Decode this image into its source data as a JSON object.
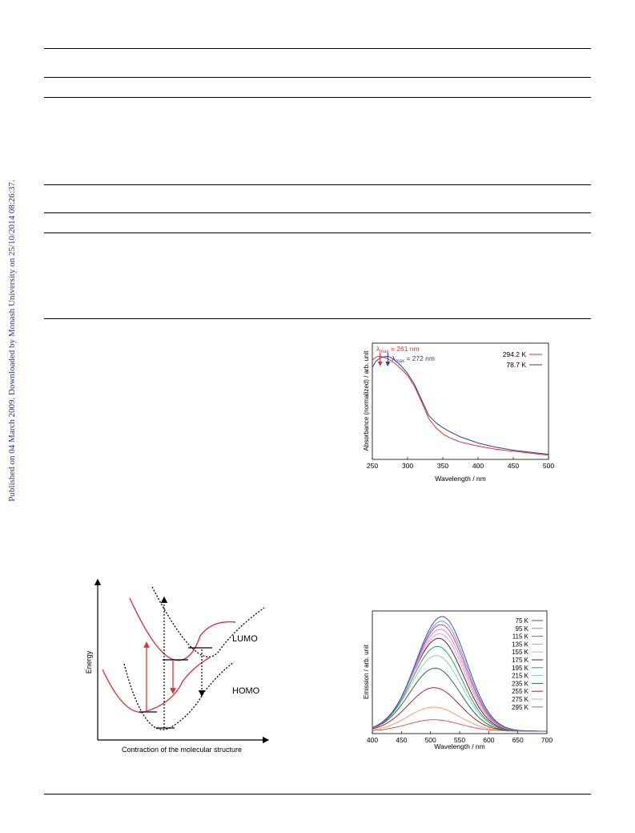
{
  "sidebar": {
    "text": "Published on 04 March 2009. Downloaded by Monash University on 25/10/2014 08:26:37."
  },
  "colors": {
    "red": "#d9343f",
    "blue": "#2f3f97",
    "link": "#1c3aa0"
  },
  "chart_data": [
    {
      "type": "line",
      "xlabel": "Wavelength / nm",
      "ylabel": "Absorbance (normalized) / arb. unit",
      "xlim": [
        250,
        500
      ],
      "ylim": [
        0,
        1
      ],
      "xticks": [
        250,
        300,
        350,
        400,
        450,
        500
      ],
      "legend": "top-right",
      "annotations": [
        {
          "prefix": "λ",
          "sub": "max",
          "value": "= 261 nm",
          "x": 261,
          "color": "#d9343f"
        },
        {
          "prefix": "λ",
          "sub": "max",
          "value": "= 272 nm",
          "x": 272,
          "color": "#2f3f97"
        }
      ],
      "series": [
        {
          "name": "294.2 K",
          "color": "#d9343f",
          "x": [
            250,
            255,
            261,
            265,
            270,
            275,
            280,
            290,
            300,
            310,
            320,
            330,
            340,
            350,
            360,
            375,
            400,
            425,
            450,
            475,
            500
          ],
          "y": [
            0.97,
            1.0,
            1.01,
            1.0,
            0.99,
            0.97,
            0.95,
            0.89,
            0.82,
            0.71,
            0.56,
            0.4,
            0.31,
            0.25,
            0.21,
            0.17,
            0.13,
            0.1,
            0.08,
            0.06,
            0.04
          ]
        },
        {
          "name": "78.7 K",
          "color": "#2f3f97",
          "x": [
            250,
            255,
            261,
            265,
            272,
            275,
            280,
            290,
            300,
            310,
            320,
            330,
            340,
            350,
            360,
            375,
            400,
            425,
            450,
            475,
            500
          ],
          "y": [
            0.9,
            0.96,
            0.99,
            1.0,
            1.01,
            1.0,
            0.98,
            0.92,
            0.84,
            0.73,
            0.58,
            0.43,
            0.36,
            0.31,
            0.27,
            0.22,
            0.16,
            0.12,
            0.09,
            0.07,
            0.05
          ]
        }
      ]
    },
    {
      "type": "diagram",
      "xlabel": "Contraction of the molecular structure",
      "ylabel": "Energy",
      "labels": [
        "LUMO",
        "HOMO"
      ]
    },
    {
      "type": "line",
      "xlabel": "Wavelength / nm",
      "ylabel": "Emission / arb. unit",
      "xlim": [
        400,
        700
      ],
      "ylim": [
        0,
        1
      ],
      "xticks": [
        400,
        450,
        500,
        550,
        600,
        650,
        700
      ],
      "legend": "top-right",
      "series": [
        {
          "name": "75 K",
          "color": "#3b56b0",
          "peak": 520,
          "amp": 1.0,
          "left": 45,
          "right": 42
        },
        {
          "name": "95 K",
          "color": "#6e97d9",
          "peak": 519,
          "amp": 0.96,
          "left": 45,
          "right": 42
        },
        {
          "name": "115 K",
          "color": "#c44a86",
          "peak": 518,
          "amp": 0.93,
          "left": 45,
          "right": 42
        },
        {
          "name": "135 K",
          "color": "#e589b9",
          "peak": 517,
          "amp": 0.89,
          "left": 45,
          "right": 42
        },
        {
          "name": "155 K",
          "color": "#ef9ec1",
          "peak": 516,
          "amp": 0.85,
          "left": 45,
          "right": 42
        },
        {
          "name": "175 K",
          "color": "#5b1f4b",
          "peak": 514,
          "amp": 0.81,
          "left": 45,
          "right": 42
        },
        {
          "name": "195 K",
          "color": "#2e9e6b",
          "peak": 512,
          "amp": 0.74,
          "left": 44,
          "right": 42
        },
        {
          "name": "215 K",
          "color": "#8fd0b0",
          "peak": 510,
          "amp": 0.66,
          "left": 44,
          "right": 43
        },
        {
          "name": "235 K",
          "color": "#2f6e3a",
          "peak": 508,
          "amp": 0.55,
          "left": 44,
          "right": 43
        },
        {
          "name": "255 K",
          "color": "#8f2f4e",
          "peak": 506,
          "amp": 0.38,
          "left": 44,
          "right": 44
        },
        {
          "name": "275 K",
          "color": "#f0a26a",
          "peak": 505,
          "amp": 0.21,
          "left": 44,
          "right": 45
        },
        {
          "name": "295 K",
          "color": "#d95b5b",
          "peak": 505,
          "amp": 0.1,
          "left": 44,
          "right": 46
        }
      ]
    }
  ]
}
